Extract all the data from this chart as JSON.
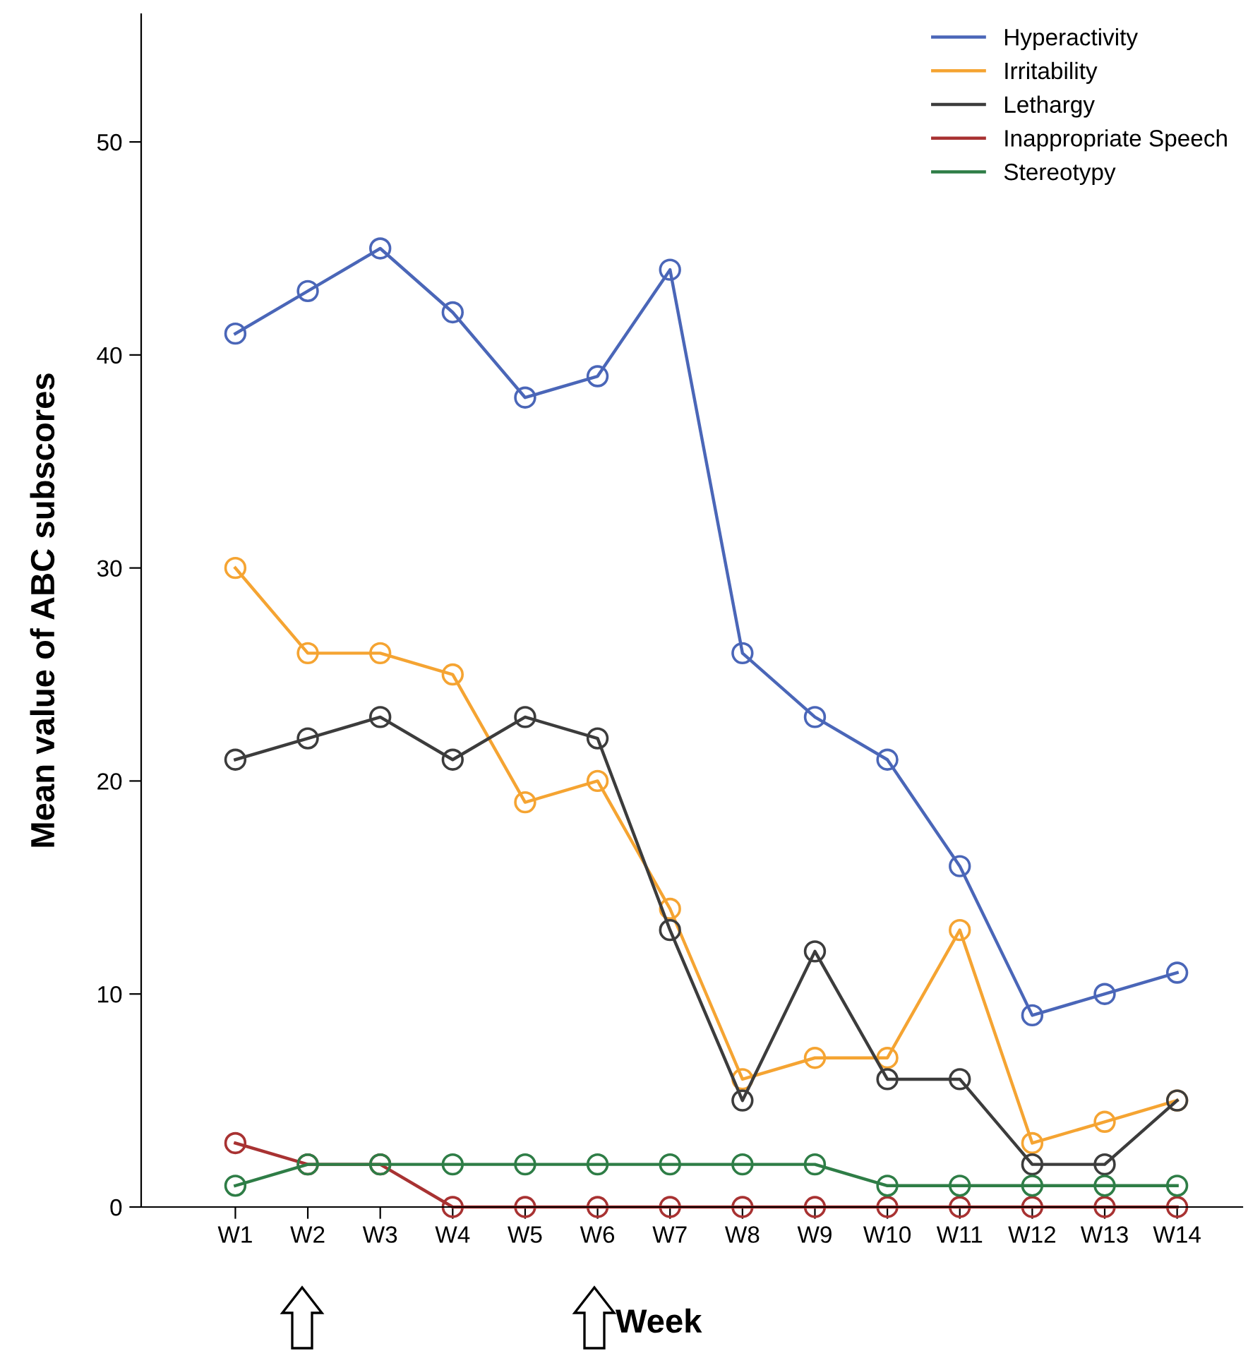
{
  "chart_data": {
    "type": "line",
    "xlabel": "Week",
    "ylabel": "Mean value of ABC subscores",
    "categories": [
      "W1",
      "W2",
      "W3",
      "W4",
      "W5",
      "W6",
      "W7",
      "W8",
      "W9",
      "W10",
      "W11",
      "W12",
      "W13",
      "W14"
    ],
    "series": [
      {
        "name": "Hyperactivity",
        "color": "#4a66b8",
        "values": [
          41,
          43,
          45,
          42,
          38,
          39,
          44,
          26,
          23,
          21,
          16,
          9,
          10,
          11
        ]
      },
      {
        "name": "Irritability",
        "color": "#f5a432",
        "values": [
          30,
          26,
          26,
          25,
          19,
          20,
          14,
          6,
          7,
          7,
          13,
          3,
          4,
          5
        ]
      },
      {
        "name": "Lethargy",
        "color": "#3c3c3c",
        "values": [
          21,
          22,
          23,
          21,
          23,
          22,
          13,
          5,
          12,
          6,
          6,
          2,
          2,
          5
        ]
      },
      {
        "name": "Inappropriate Speech",
        "color": "#a83232",
        "values": [
          3,
          2,
          2,
          0,
          0,
          0,
          0,
          0,
          0,
          0,
          0,
          0,
          0,
          0
        ]
      },
      {
        "name": "Stereotypy",
        "color": "#2e7d46",
        "values": [
          1,
          2,
          2,
          2,
          2,
          2,
          2,
          2,
          2,
          1,
          1,
          1,
          1,
          1
        ]
      }
    ],
    "ylim": [
      0,
      56
    ],
    "yticks": [
      0,
      10,
      20,
      30,
      40,
      50
    ],
    "grid": false,
    "legend": "top right",
    "marker": "circle",
    "line_style": "solid"
  }
}
